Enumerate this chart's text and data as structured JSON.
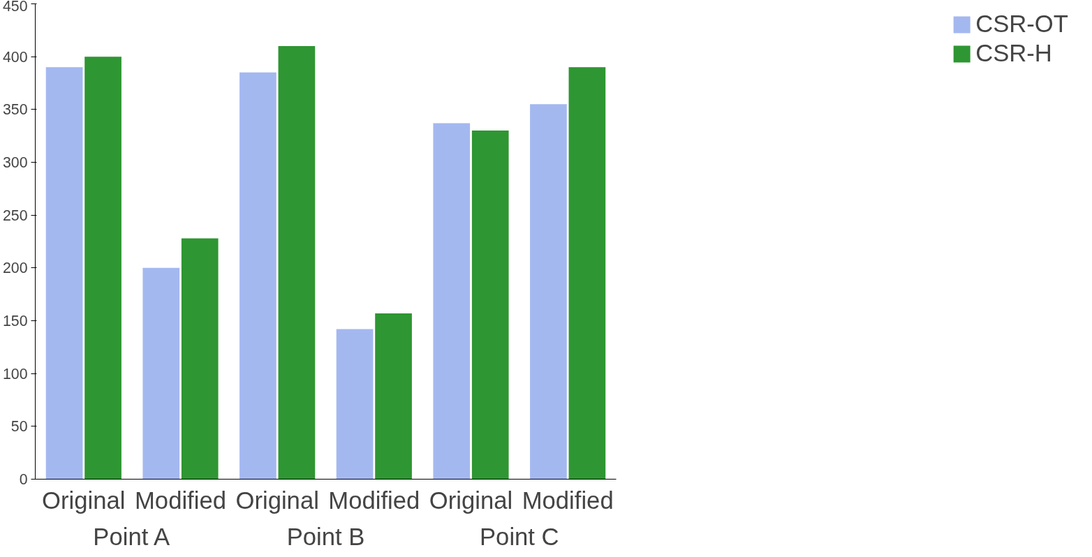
{
  "chart_data": {
    "type": "bar",
    "categories": [
      "Original",
      "Modified",
      "Original",
      "Modified",
      "Original",
      "Modified"
    ],
    "series": [
      {
        "name": "CSR-OT",
        "color": "#a4b8f0",
        "values": [
          390,
          200,
          385,
          142,
          337,
          355
        ]
      },
      {
        "name": "CSR-H",
        "color": "#2e9632",
        "values": [
          400,
          228,
          410,
          157,
          330,
          390
        ]
      }
    ],
    "ylim": [
      0,
      450
    ],
    "yticks": [
      0,
      50,
      100,
      150,
      200,
      250,
      300,
      350,
      400,
      450
    ],
    "grid": false,
    "legend": "right",
    "annotations": [
      "Point A",
      "Point B",
      "Point C"
    ]
  }
}
